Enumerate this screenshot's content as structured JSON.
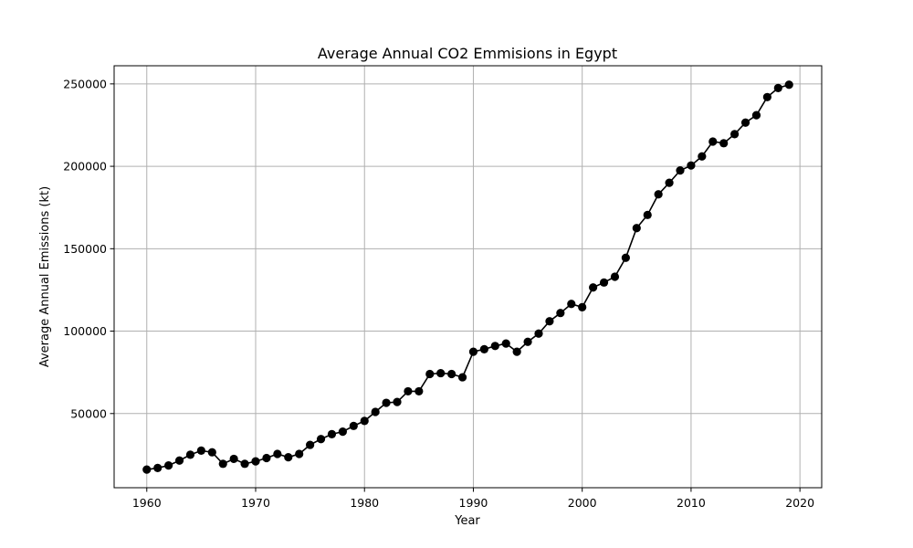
{
  "chart_data": {
    "type": "line",
    "title": "Average Annual CO2 Emmisions in Egypt",
    "xlabel": "Year",
    "ylabel": "Average Annual Emissions (kt)",
    "xlim": [
      1957,
      2022
    ],
    "ylim": [
      5000,
      261000
    ],
    "xticks": [
      1960,
      1970,
      1980,
      1990,
      2000,
      2010,
      2020
    ],
    "yticks": [
      50000,
      100000,
      150000,
      200000,
      250000
    ],
    "grid": true,
    "marker": "circle",
    "color": "#000000",
    "x": [
      1960,
      1961,
      1962,
      1963,
      1964,
      1965,
      1966,
      1967,
      1968,
      1969,
      1970,
      1971,
      1972,
      1973,
      1974,
      1975,
      1976,
      1977,
      1978,
      1979,
      1980,
      1981,
      1982,
      1983,
      1984,
      1985,
      1986,
      1987,
      1988,
      1989,
      1990,
      1991,
      1992,
      1993,
      1994,
      1995,
      1996,
      1997,
      1998,
      1999,
      2000,
      2001,
      2002,
      2003,
      2004,
      2005,
      2006,
      2007,
      2008,
      2009,
      2010,
      2011,
      2012,
      2013,
      2014,
      2015,
      2016,
      2017,
      2018,
      2019
    ],
    "values": [
      16000,
      17000,
      18500,
      21500,
      25000,
      27500,
      26500,
      19500,
      22500,
      19500,
      21000,
      23000,
      25500,
      23500,
      25500,
      31000,
      34500,
      37500,
      39000,
      42500,
      45500,
      51000,
      56500,
      57000,
      63500,
      63500,
      74000,
      74500,
      74000,
      72000,
      87500,
      89000,
      91000,
      92500,
      87500,
      93500,
      98500,
      106000,
      111000,
      116500,
      114500,
      126500,
      129500,
      133000,
      144500,
      162500,
      170500,
      183000,
      190000,
      197500,
      200500,
      206000,
      215000,
      214000,
      219500,
      226500,
      231000,
      242000,
      247500,
      249500
    ]
  }
}
